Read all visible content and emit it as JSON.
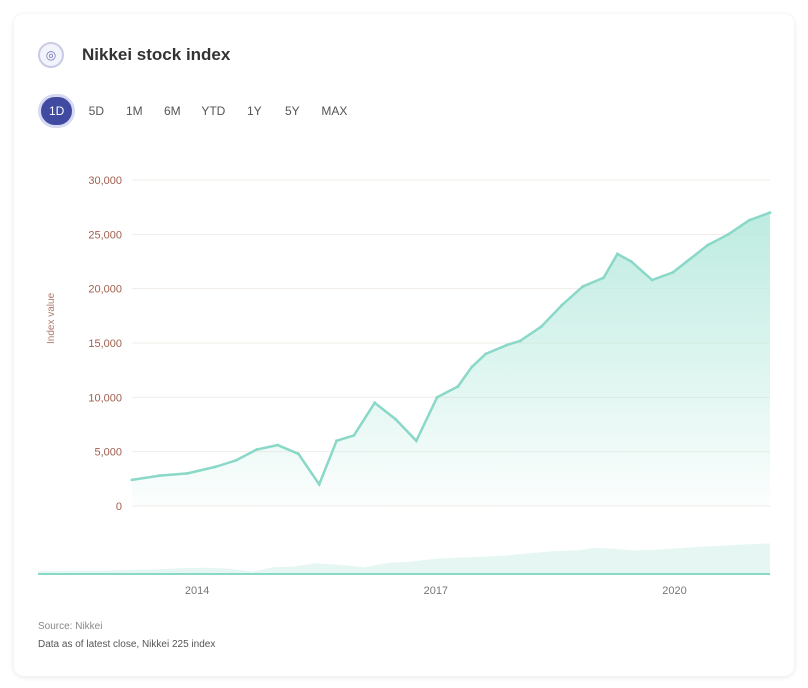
{
  "header": {
    "title": "Nikkei stock index",
    "logo_icon": "index-icon"
  },
  "ranges": [
    {
      "label": "1D",
      "active": true
    },
    {
      "label": "5D",
      "active": false
    },
    {
      "label": "1M",
      "active": false
    },
    {
      "label": "6M",
      "active": false
    },
    {
      "label": "YTD",
      "active": false
    },
    {
      "label": "1Y",
      "active": false
    },
    {
      "label": "5Y",
      "active": false
    },
    {
      "label": "MAX",
      "active": false
    }
  ],
  "footer": {
    "source_label": "Source: Nikkei",
    "note": "Data as of latest close, Nikkei 225 index"
  },
  "colors": {
    "line": "#8ad8c8",
    "fill": "#b6e9dd",
    "active_range": "#3f4aa0",
    "tick_label": "#a0604f",
    "grid": "#f1ece6"
  },
  "chart_data": {
    "type": "area",
    "ylabel": "Index value",
    "ylim": [
      0,
      30000
    ],
    "yticks": [
      0,
      5000,
      10000,
      15000,
      20000,
      25000,
      30000
    ],
    "ytick_labels": [
      "0",
      "5,000",
      "10,000",
      "15,000",
      "20,000",
      "25,000",
      "30,000"
    ],
    "xlim": [
      2012.0,
      2021.2
    ],
    "xticks": [
      2014,
      2017,
      2020
    ],
    "xtick_labels": [
      "2014",
      "2017",
      "2020"
    ],
    "grid": true,
    "series": [
      {
        "x": [
          2012.0,
          2012.4,
          2012.8,
          2013.2,
          2013.5,
          2013.8,
          2014.1,
          2014.4,
          2014.7,
          2014.95,
          2015.2,
          2015.5,
          2015.8,
          2016.1,
          2016.4,
          2016.7,
          2016.9,
          2017.1,
          2017.4,
          2017.6,
          2017.9,
          2018.2,
          2018.5,
          2018.8,
          2019.0,
          2019.2,
          2019.5,
          2019.8,
          2020.0,
          2020.3,
          2020.6,
          2020.9,
          2021.2
        ],
        "y": [
          2400,
          2800,
          3000,
          3600,
          4200,
          5200,
          5600,
          4800,
          2000,
          6000,
          6500,
          9500,
          8000,
          6000,
          10000,
          11000,
          12800,
          14000,
          14800,
          15200,
          16500,
          18500,
          20200,
          21000,
          23200,
          22500,
          20800,
          21500,
          22500,
          24000,
          25000,
          26300,
          27000
        ]
      }
    ]
  }
}
